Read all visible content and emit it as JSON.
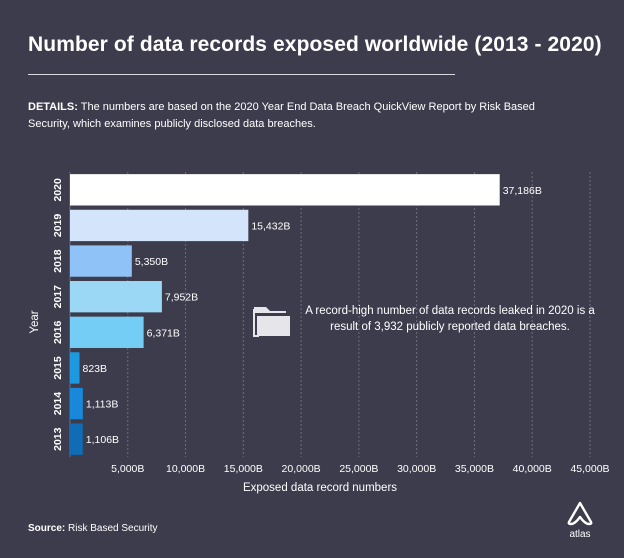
{
  "header": {
    "title": "Number of data records exposed worldwide (2013 - 2020)",
    "details_label": "DETAILS:",
    "details_text": " The numbers are based on the 2020 Year End Data Breach QuickView Report by Risk Based Security, which examines publicly disclosed data breaches."
  },
  "annotation": {
    "icon": "folder-icon",
    "text": "A record-high number of data records leaked in 2020 is a result of 3,932 publicly reported data breaches."
  },
  "footer": {
    "source_label": "Source:",
    "source_text": " Risk Based Security",
    "logo_text": "atlas"
  },
  "chart_data": {
    "type": "bar",
    "orientation": "horizontal",
    "xlabel": "Exposed data record numbers",
    "ylabel": "Year",
    "xlim": [
      0,
      45000
    ],
    "xticks": [
      5000,
      10000,
      15000,
      20000,
      25000,
      30000,
      35000,
      40000,
      45000
    ],
    "xtick_labels": [
      "5,000B",
      "10,000B",
      "15,000B",
      "20,000B",
      "25,000B",
      "30,000B",
      "35,000B",
      "40,000B",
      "45,000B"
    ],
    "grid": "vertical dashed",
    "categories": [
      "2020",
      "2019",
      "2018",
      "2017",
      "2016",
      "2015",
      "2014",
      "2013"
    ],
    "values": [
      37186,
      15432,
      5350,
      7952,
      6371,
      823,
      1113,
      1106
    ],
    "value_labels": [
      "37,186B",
      "15,432B",
      "5,350B",
      "7,952B",
      "6,371B",
      "823B",
      "1,113B",
      "1,106B"
    ],
    "colors": [
      "#ffffff",
      "#d4e4fb",
      "#8fc2f6",
      "#9bd8f6",
      "#74cdf5",
      "#1d99e0",
      "#1788da",
      "#0f6cb5"
    ]
  }
}
